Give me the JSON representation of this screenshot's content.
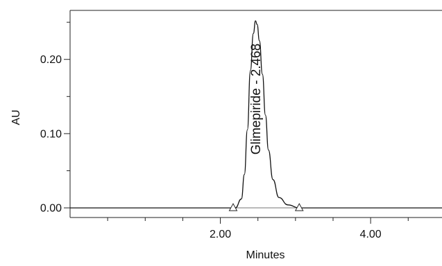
{
  "chart_data": {
    "type": "line",
    "xlabel": "Minutes",
    "ylabel": "AU",
    "xlim": [
      0.0,
      4.95
    ],
    "ylim": [
      -0.013,
      0.266
    ],
    "x_ticks_major": [
      {
        "value": 2.0,
        "label": "2.00"
      },
      {
        "value": 4.0,
        "label": "4.00"
      }
    ],
    "x_ticks_minor": [
      0.5,
      1.0,
      1.5,
      2.5,
      3.0,
      3.5,
      4.5
    ],
    "y_ticks_major": [
      {
        "value": 0.0,
        "label": "0.00"
      },
      {
        "value": 0.1,
        "label": "0.10"
      },
      {
        "value": 0.2,
        "label": "0.20"
      }
    ],
    "y_ticks_minor": [
      0.05,
      0.15,
      0.25
    ],
    "series": [
      {
        "values": [
          {
            "x": 0.0,
            "y": 0.0
          },
          {
            "x": 2.2,
            "y": 0.0
          },
          {
            "x": 2.28,
            "y": 0.012
          },
          {
            "x": 2.32,
            "y": 0.045
          },
          {
            "x": 2.36,
            "y": 0.105
          },
          {
            "x": 2.4,
            "y": 0.185
          },
          {
            "x": 2.44,
            "y": 0.235
          },
          {
            "x": 2.468,
            "y": 0.252
          },
          {
            "x": 2.49,
            "y": 0.247
          },
          {
            "x": 2.52,
            "y": 0.225
          },
          {
            "x": 2.56,
            "y": 0.18
          },
          {
            "x": 2.6,
            "y": 0.125
          },
          {
            "x": 2.64,
            "y": 0.078
          },
          {
            "x": 2.7,
            "y": 0.038
          },
          {
            "x": 2.78,
            "y": 0.014
          },
          {
            "x": 2.9,
            "y": 0.004
          },
          {
            "x": 3.05,
            "y": 0.0
          },
          {
            "x": 4.95,
            "y": 0.0
          }
        ]
      }
    ],
    "baseline_markers": [
      {
        "x": 2.17,
        "y": 0.0
      },
      {
        "x": 3.05,
        "y": 0.0
      }
    ],
    "annotations": [
      {
        "text": "Glimepiride - 2.468",
        "x": 2.468
      }
    ],
    "grid": false,
    "line_color": "#111111",
    "baseline_color": "#aaaaaa"
  }
}
